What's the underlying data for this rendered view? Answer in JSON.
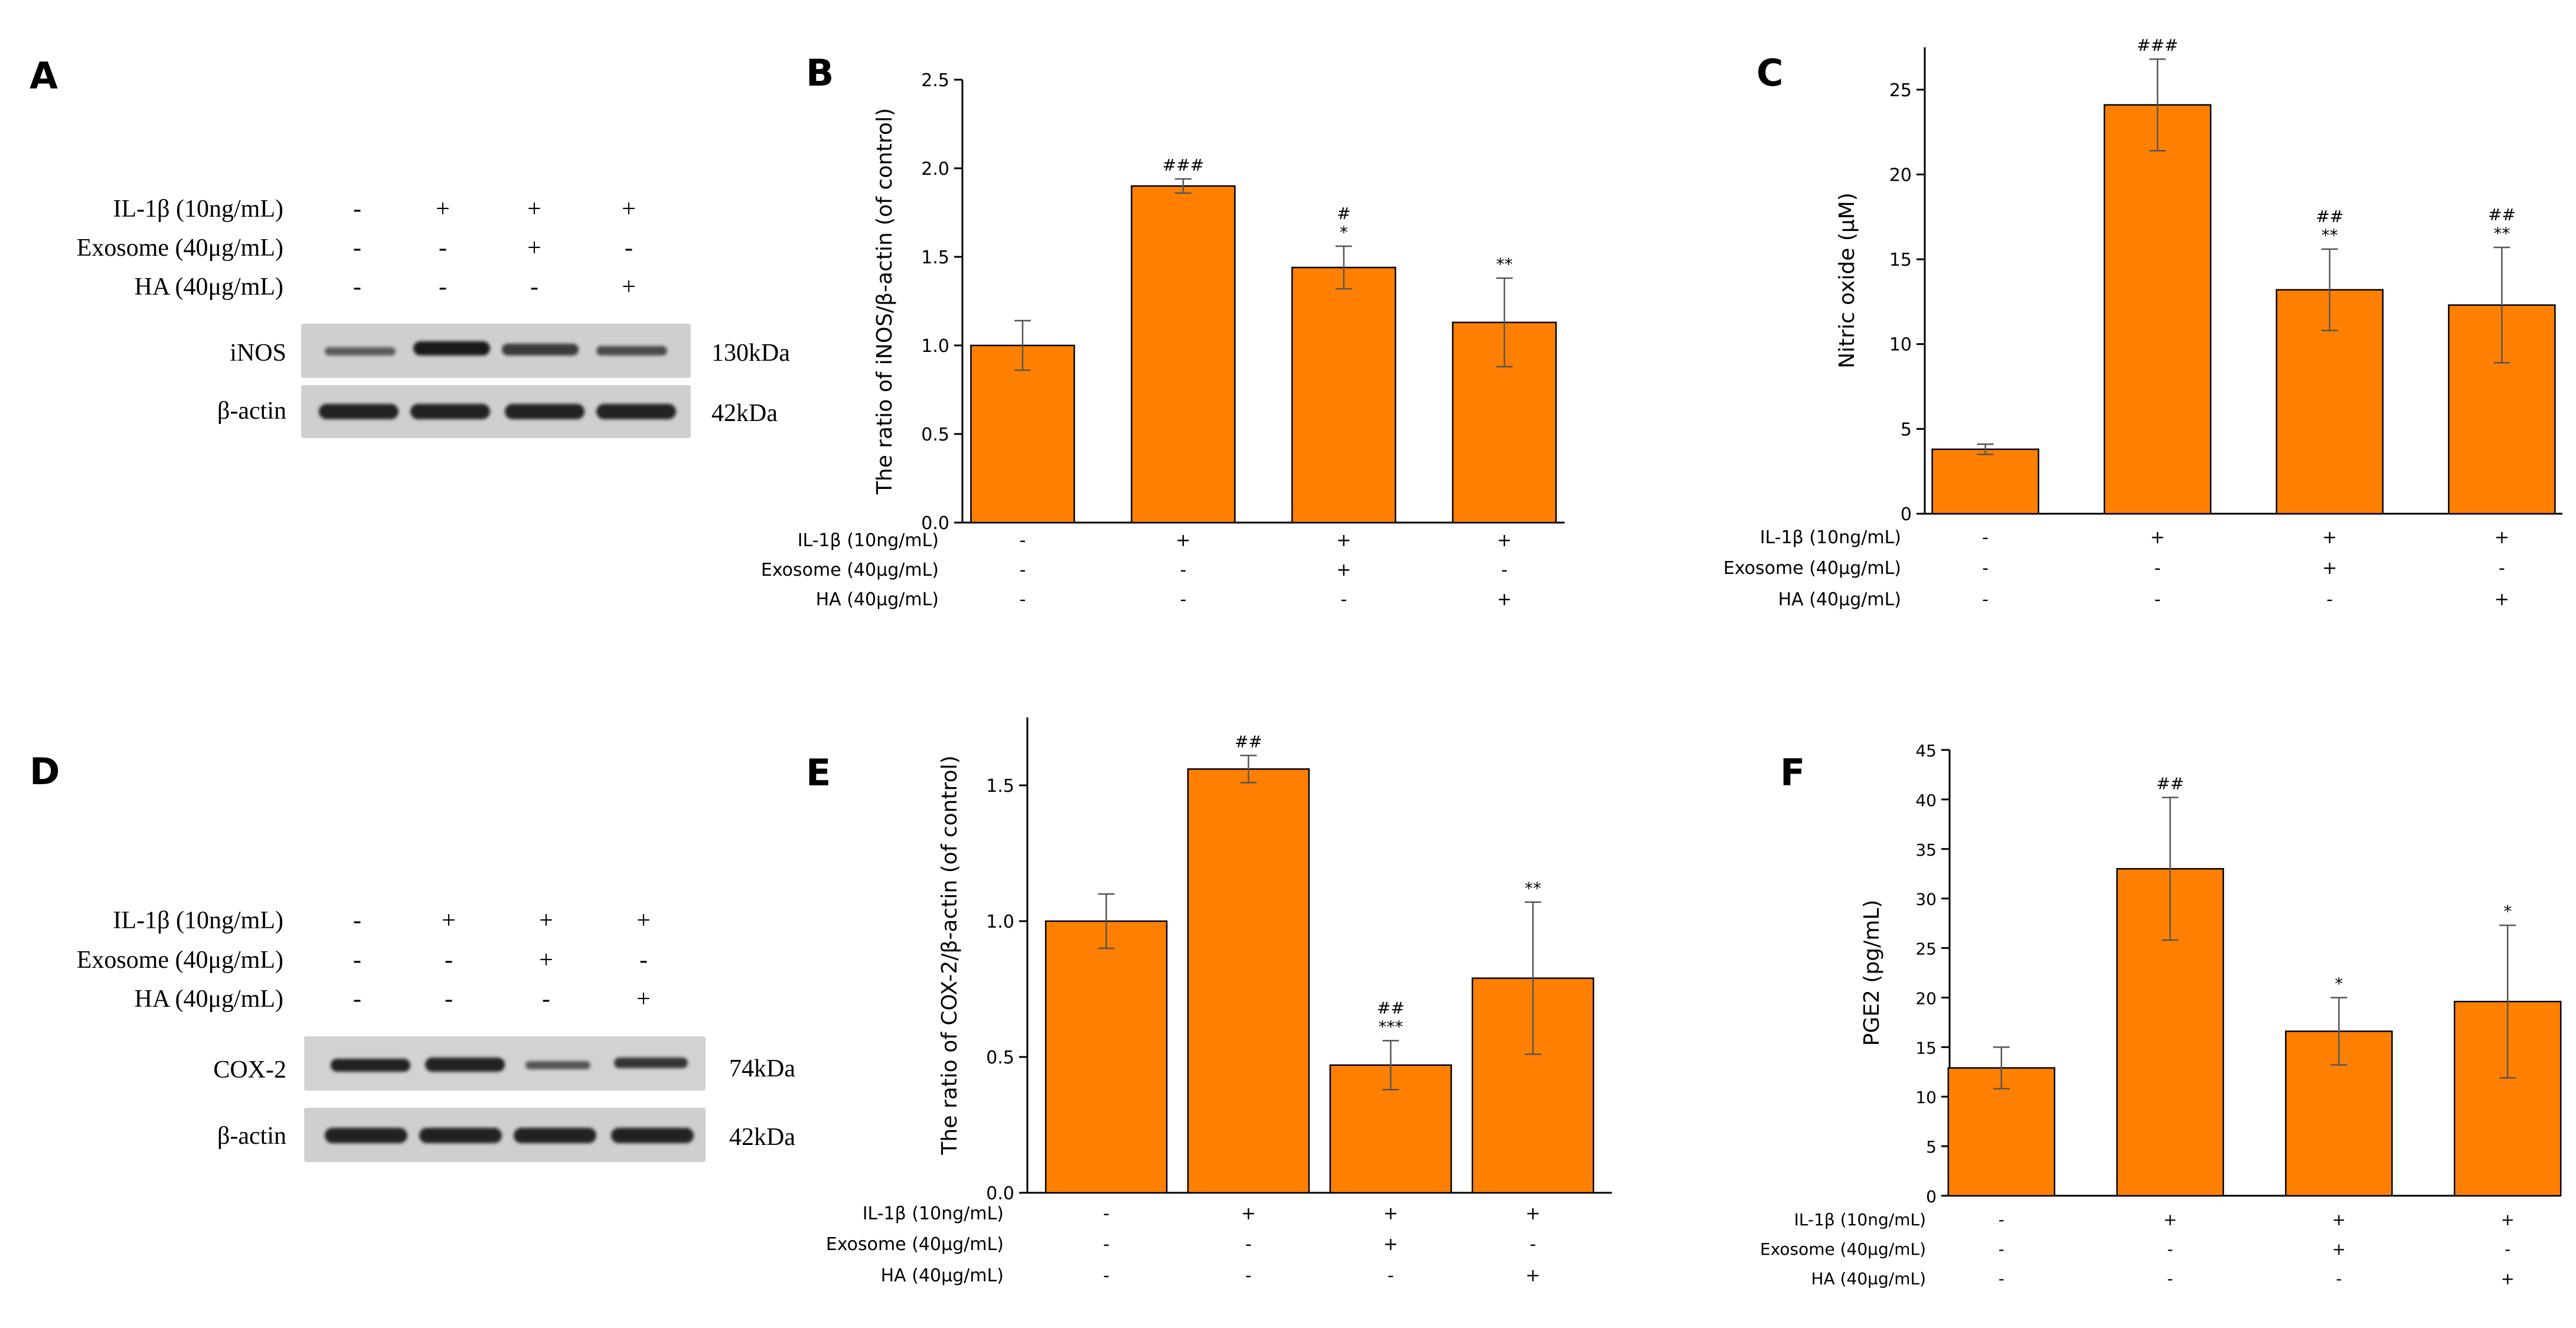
{
  "panels": {
    "A": {
      "letter": "A",
      "conditions": [
        {
          "label": "IL-1β (10ng/mL)",
          "signs": [
            "-",
            "+",
            "+",
            "+"
          ]
        },
        {
          "label": "Exosome (40μg/mL)",
          "signs": [
            "-",
            "-",
            "+",
            "-"
          ]
        },
        {
          "label": "HA (40μg/mL)",
          "signs": [
            "-",
            "-",
            "-",
            "+"
          ]
        }
      ],
      "blots": [
        {
          "label": "iNOS",
          "kda": "130kDa"
        },
        {
          "label": "β-actin",
          "kda": "42kDa"
        }
      ]
    },
    "D": {
      "letter": "D",
      "conditions": [
        {
          "label": "IL-1β (10ng/mL)",
          "signs": [
            "-",
            "+",
            "+",
            "+"
          ]
        },
        {
          "label": "Exosome (40μg/mL)",
          "signs": [
            "-",
            "-",
            "+",
            "-"
          ]
        },
        {
          "label": "HA (40μg/mL)",
          "signs": [
            "-",
            "-",
            "-",
            "+"
          ]
        }
      ],
      "blots": [
        {
          "label": "COX-2",
          "kda": "74kDa"
        },
        {
          "label": "β-actin",
          "kda": "42kDa"
        }
      ]
    }
  },
  "colors": {
    "bar": "#FF8000",
    "bar_stroke": "#000000"
  },
  "chart_data": [
    {
      "id": "B",
      "letter": "B",
      "type": "bar",
      "ylabel": "The ratio of iNOS/β-actin (of control)",
      "ylim": [
        0,
        2.5
      ],
      "yticks": [
        "0.0",
        "0.5",
        "1.0",
        "1.5",
        "2.0",
        "2.5"
      ],
      "values": [
        1.0,
        1.9,
        1.44,
        1.13
      ],
      "errors": [
        0.14,
        0.04,
        0.12,
        0.25
      ],
      "annotations": [
        [],
        [
          "###"
        ],
        [
          "#",
          "*"
        ],
        [
          "**"
        ]
      ],
      "condition_labels": [
        "IL-1β (10ng/mL)",
        "Exosome (40μg/mL)",
        "HA (40μg/mL)"
      ],
      "condition_signs": [
        [
          "-",
          "+",
          "+",
          "+"
        ],
        [
          "-",
          "-",
          "+",
          "-"
        ],
        [
          "-",
          "-",
          "-",
          "+"
        ]
      ]
    },
    {
      "id": "C",
      "letter": "C",
      "type": "bar",
      "ylabel": "Nitric oxide (μM)",
      "ylim": [
        0,
        27.5
      ],
      "yticks": [
        "0",
        "5",
        "10",
        "15",
        "20",
        "25"
      ],
      "values": [
        3.8,
        24.1,
        13.2,
        12.3
      ],
      "errors": [
        0.3,
        2.7,
        2.4,
        3.4
      ],
      "annotations": [
        [],
        [
          "###"
        ],
        [
          "##",
          "**"
        ],
        [
          "##",
          "**"
        ]
      ],
      "condition_labels": [
        "IL-1β (10ng/mL)",
        "Exosome (40μg/mL)",
        "HA (40μg/mL)"
      ],
      "condition_signs": [
        [
          "-",
          "+",
          "+",
          "+"
        ],
        [
          "-",
          "-",
          "+",
          "-"
        ],
        [
          "-",
          "-",
          "-",
          "+"
        ]
      ]
    },
    {
      "id": "E",
      "letter": "E",
      "type": "bar",
      "ylabel": "The ratio of COX-2/β-actin (of control)",
      "ylim": [
        0,
        1.75
      ],
      "yticks": [
        "0.0",
        "0.5",
        "1.0",
        "1.5"
      ],
      "values": [
        1.0,
        1.56,
        0.47,
        0.79
      ],
      "errors": [
        0.1,
        0.05,
        0.09,
        0.28
      ],
      "annotations": [
        [],
        [
          "##"
        ],
        [
          "##",
          "***"
        ],
        [
          "**"
        ]
      ],
      "condition_labels": [
        "IL-1β (10ng/mL)",
        "Exosome (40μg/mL)",
        "HA (40μg/mL)"
      ],
      "condition_signs": [
        [
          "-",
          "+",
          "+",
          "+"
        ],
        [
          "-",
          "-",
          "+",
          "-"
        ],
        [
          "-",
          "-",
          "-",
          "+"
        ]
      ]
    },
    {
      "id": "F",
      "letter": "F",
      "type": "bar",
      "ylabel": "PGE2 (pg/mL)",
      "ylim": [
        0,
        45
      ],
      "yticks": [
        "0",
        "5",
        "10",
        "15",
        "20",
        "25",
        "30",
        "35",
        "40",
        "45"
      ],
      "values": [
        12.9,
        33.0,
        16.6,
        19.6
      ],
      "errors": [
        2.1,
        7.2,
        3.4,
        7.7
      ],
      "annotations": [
        [],
        [
          "##"
        ],
        [
          "*"
        ],
        [
          "*"
        ]
      ],
      "condition_labels": [
        "IL-1β (10ng/mL)",
        "Exosome (40μg/mL)",
        "HA (40μg/mL)"
      ],
      "condition_signs": [
        [
          "-",
          "+",
          "+",
          "+"
        ],
        [
          "-",
          "-",
          "+",
          "-"
        ],
        [
          "-",
          "-",
          "-",
          "+"
        ]
      ]
    }
  ]
}
